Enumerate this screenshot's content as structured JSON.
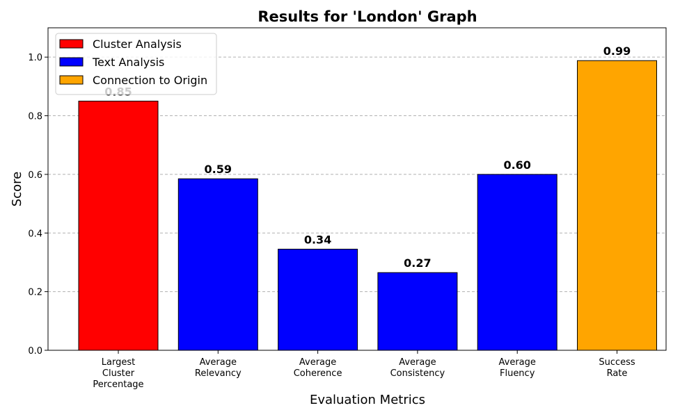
{
  "chart_data": {
    "type": "bar",
    "title": "Results for 'London' Graph",
    "xlabel": "Evaluation Metrics",
    "ylabel": "Score",
    "ylim": [
      0,
      1.1
    ],
    "yticks": [
      0.0,
      0.2,
      0.4,
      0.6,
      0.8,
      1.0
    ],
    "ytick_labels": [
      "0.0",
      "0.2",
      "0.4",
      "0.6",
      "0.8",
      "1.0"
    ],
    "grid": "y-dashed",
    "legend_placement": "top-left",
    "categories": [
      [
        "Largest",
        "Cluster",
        "Percentage"
      ],
      [
        "Average",
        "Relevancy"
      ],
      [
        "Average",
        "Coherence"
      ],
      [
        "Average",
        "Consistency"
      ],
      [
        "Average",
        "Fluency"
      ],
      [
        "Success",
        "Rate"
      ]
    ],
    "values": [
      0.85,
      0.585,
      0.345,
      0.265,
      0.6,
      0.988
    ],
    "value_labels": [
      "0.85",
      "0.59",
      "0.34",
      "0.27",
      "0.60",
      "0.99"
    ],
    "bar_groups": [
      "Cluster Analysis",
      "Text Analysis",
      "Text Analysis",
      "Text Analysis",
      "Text Analysis",
      "Connection to Origin"
    ],
    "legend": [
      {
        "name": "Cluster Analysis",
        "color": "#ff0000"
      },
      {
        "name": "Text Analysis",
        "color": "#0000ff"
      },
      {
        "name": "Connection to Origin",
        "color": "#ffa500"
      }
    ]
  }
}
